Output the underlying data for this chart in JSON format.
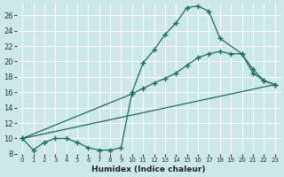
{
  "xlabel": "Humidex (Indice chaleur)",
  "bg_color": "#cce8e8",
  "grid_color": "#b8d8d8",
  "line_color": "#1a6b5a",
  "xlim": [
    -0.5,
    23.5
  ],
  "ylim": [
    8,
    27.5
  ],
  "yticks": [
    8,
    10,
    12,
    14,
    16,
    18,
    20,
    22,
    24,
    26
  ],
  "xticks": [
    0,
    1,
    2,
    3,
    4,
    5,
    6,
    7,
    8,
    9,
    10,
    11,
    12,
    13,
    14,
    15,
    16,
    17,
    18,
    19,
    20,
    21,
    22,
    23
  ],
  "line1_x": [
    0,
    1,
    2,
    3,
    4,
    5,
    6,
    7,
    8,
    9,
    10,
    11,
    12,
    13,
    14,
    15,
    16,
    17,
    18,
    20,
    21,
    22,
    23
  ],
  "line1_y": [
    10.0,
    8.5,
    9.5,
    10.0,
    10.0,
    9.5,
    8.8,
    8.5,
    8.5,
    8.8,
    16.0,
    19.8,
    21.5,
    23.5,
    25.0,
    27.0,
    27.2,
    26.5,
    23.0,
    21.0,
    19.0,
    17.5,
    17.0
  ],
  "line2_x": [
    0,
    10,
    11,
    12,
    13,
    14,
    15,
    16,
    17,
    18,
    19,
    20,
    21,
    22,
    23
  ],
  "line2_y": [
    10.0,
    15.8,
    16.5,
    17.2,
    17.8,
    18.5,
    19.5,
    20.5,
    21.0,
    21.3,
    21.0,
    21.0,
    18.5,
    17.5,
    17.0
  ],
  "line3_x": [
    0,
    23
  ],
  "line3_y": [
    10.0,
    17.0
  ]
}
